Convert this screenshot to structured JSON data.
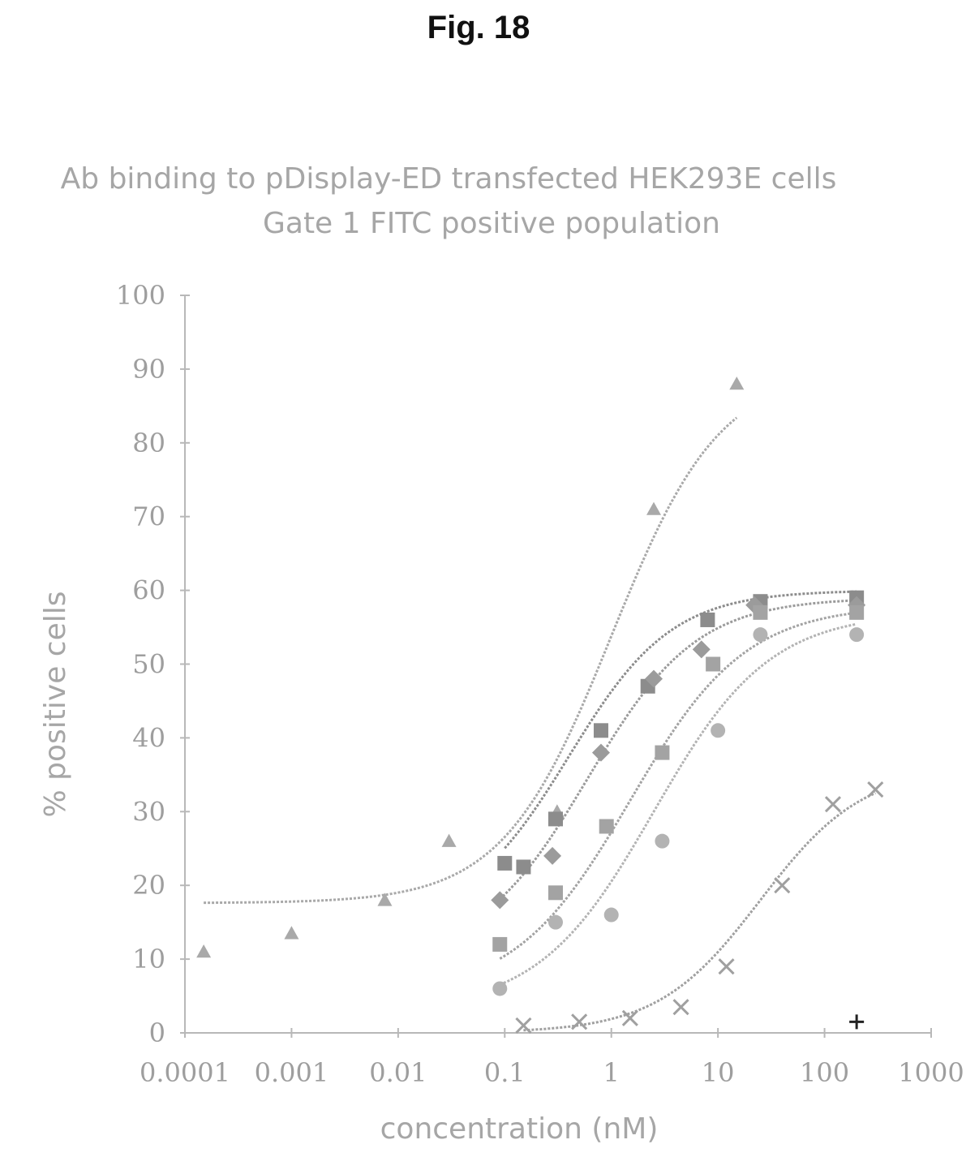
{
  "figure": {
    "label": "Fig. 18"
  },
  "chart_data": {
    "type": "scatter",
    "title": "Ab binding to pDisplay-ED transfected HEK293E cells",
    "subtitle": "Gate 1 FITC positive population",
    "xlabel": "concentration (nM)",
    "ylabel": "% positive cells",
    "xscale": "log",
    "xlim": [
      0.0001,
      1000
    ],
    "ylim": [
      0,
      100
    ],
    "x_ticks": [
      0.0001,
      0.001,
      0.01,
      0.1,
      1,
      10,
      100,
      1000
    ],
    "x_tick_labels": [
      "0.0001",
      "0.001",
      "0.01",
      "0.1",
      "1",
      "10",
      "100",
      "1000"
    ],
    "y_ticks": [
      0,
      10,
      20,
      30,
      40,
      50,
      60,
      70,
      80,
      90,
      100
    ],
    "y_tick_labels": [
      "0",
      "10",
      "20",
      "30",
      "40",
      "50",
      "60",
      "70",
      "80",
      "90",
      "100"
    ],
    "grid": false,
    "legend": "none",
    "series": [
      {
        "marker": "triangle",
        "color": "#a9a9a9",
        "x": [
          0.00015,
          0.001,
          0.0075,
          0.03,
          0.31,
          2.5,
          15
        ],
        "y": [
          11,
          13.5,
          18,
          26,
          30,
          71,
          88
        ],
        "fit": {
          "bottom": 17.6,
          "top": 90,
          "ec50": 1.0,
          "hill": 0.85,
          "xmin": 0.00015,
          "xmax": 15
        }
      },
      {
        "marker": "square",
        "color": "#8c8c8c",
        "x": [
          0.1,
          0.15,
          0.3,
          0.8,
          2.2,
          8,
          25,
          200
        ],
        "y": [
          23,
          22.5,
          29,
          41,
          47,
          56,
          58.5,
          59
        ],
        "fit": {
          "bottom": 15,
          "top": 60,
          "ec50": 0.4,
          "hill": 0.9,
          "xmin": 0.1,
          "xmax": 200
        }
      },
      {
        "marker": "diamond",
        "color": "#9b9b9b",
        "x": [
          0.09,
          0.28,
          0.8,
          2.5,
          7,
          22,
          200
        ],
        "y": [
          18,
          24,
          38,
          48,
          52,
          58,
          58
        ],
        "fit": {
          "bottom": 10,
          "top": 59,
          "ec50": 0.6,
          "hill": 0.85,
          "xmin": 0.09,
          "xmax": 200
        }
      },
      {
        "marker": "square",
        "color": "#a3a3a3",
        "x": [
          0.09,
          0.3,
          0.9,
          3,
          9,
          25,
          200
        ],
        "y": [
          12,
          19,
          28,
          38,
          50,
          57,
          57
        ],
        "fit": {
          "bottom": 5,
          "top": 58,
          "ec50": 1.5,
          "hill": 0.8,
          "xmin": 0.09,
          "xmax": 200
        }
      },
      {
        "marker": "circle",
        "color": "#b3b3b3",
        "x": [
          0.09,
          0.3,
          1.0,
          3,
          10,
          25,
          200
        ],
        "y": [
          6,
          15,
          16,
          26,
          41,
          54,
          54
        ],
        "fit": {
          "bottom": 3,
          "top": 57,
          "ec50": 2.5,
          "hill": 0.8,
          "xmin": 0.09,
          "xmax": 200
        }
      },
      {
        "marker": "x",
        "color": "#a0a0a0",
        "x": [
          0.15,
          0.5,
          1.5,
          4.5,
          12,
          40,
          120,
          300
        ],
        "y": [
          1,
          1.5,
          2,
          3.5,
          9,
          20,
          31,
          33
        ],
        "fit": {
          "bottom": 0,
          "top": 36,
          "ec50": 25,
          "hill": 0.9,
          "xmin": 0.15,
          "xmax": 300
        }
      },
      {
        "marker": "plus",
        "color": "#222222",
        "x": [
          200
        ],
        "y": [
          1.5
        ]
      }
    ]
  }
}
